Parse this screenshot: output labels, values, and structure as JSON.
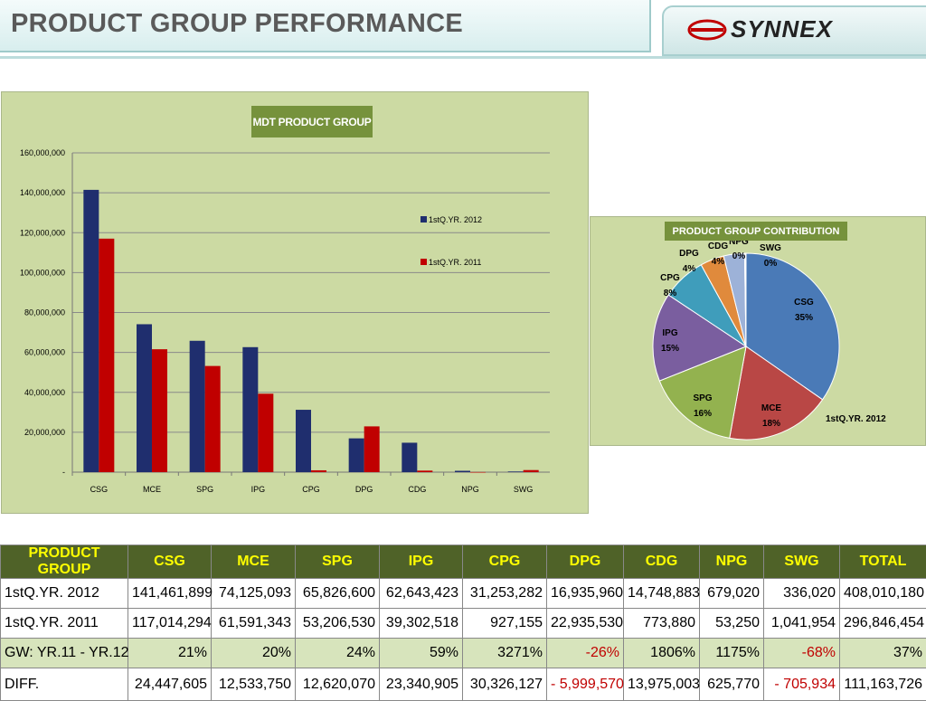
{
  "header": {
    "title": "PRODUCT GROUP PERFORMANCE",
    "logo_text": "SYNNEX"
  },
  "colors": {
    "series_2012": "#1f2e6e",
    "series_2011": "#c00000",
    "panel_bg": "#ccdaa3",
    "title_box": "#76923c"
  },
  "chart_data": [
    {
      "type": "bar",
      "title": "MDT PRODUCT GROUP",
      "categories": [
        "CSG",
        "MCE",
        "SPG",
        "IPG",
        "CPG",
        "DPG",
        "CDG",
        "NPG",
        "SWG"
      ],
      "series": [
        {
          "name": "1stQ.YR. 2012",
          "values": [
            141461899,
            74125093,
            65826600,
            62643423,
            31253282,
            16935960,
            14748883,
            679020,
            336020
          ]
        },
        {
          "name": "1stQ.YR. 2011",
          "values": [
            117014294,
            61591343,
            53206530,
            39302518,
            927155,
            22935530,
            773880,
            53250,
            1041954
          ]
        }
      ],
      "ylim": [
        0,
        160000000
      ],
      "yticks": [
        "-",
        "20,000,000",
        "40,000,000",
        "60,000,000",
        "80,000,000",
        "100,000,000",
        "120,000,000",
        "140,000,000",
        "160,000,000"
      ],
      "grid": true,
      "legend": "right"
    },
    {
      "type": "pie",
      "title": "PRODUCT GROUP CONTRIBUTION",
      "series_label": "1stQ.YR. 2012",
      "slices": [
        {
          "name": "CSG",
          "pct": "35%",
          "value": 141461899,
          "color": "#4a7ab7"
        },
        {
          "name": "MCE",
          "pct": "18%",
          "value": 74125093,
          "color": "#b94745"
        },
        {
          "name": "SPG",
          "pct": "16%",
          "value": 65826600,
          "color": "#93b24f"
        },
        {
          "name": "IPG",
          "pct": "15%",
          "value": 62643423,
          "color": "#7a5e9f"
        },
        {
          "name": "CPG",
          "pct": "8%",
          "value": 31253282,
          "color": "#3f9dbb"
        },
        {
          "name": "DPG",
          "pct": "4%",
          "value": 16935960,
          "color": "#e08a3c"
        },
        {
          "name": "CDG",
          "pct": "4%",
          "value": 14748883,
          "color": "#9db2d8"
        },
        {
          "name": "NPG",
          "pct": "0%",
          "value": 679020,
          "color": "#d9a0a0"
        },
        {
          "name": "SWG",
          "pct": "0%",
          "value": 336020,
          "color": "#c3d69b"
        }
      ]
    }
  ],
  "table": {
    "headers": [
      "PRODUCT GROUP",
      "CSG",
      "MCE",
      "SPG",
      "IPG",
      "CPG",
      "DPG",
      "CDG",
      "NPG",
      "SWG",
      "TOTAL"
    ],
    "rows": [
      {
        "label": "1stQ.YR. 2012",
        "cells": [
          "141,461,899",
          "74,125,093",
          "65,826,600",
          "62,643,423",
          "31,253,282",
          "16,935,960",
          "14,748,883",
          "679,020",
          "336,020",
          "408,010,180"
        ]
      },
      {
        "label": "1stQ.YR. 2011",
        "cells": [
          "117,014,294",
          "61,591,343",
          "53,206,530",
          "39,302,518",
          "927,155",
          "22,935,530",
          "773,880",
          "53,250",
          "1,041,954",
          "296,846,454"
        ]
      },
      {
        "label": "GW: YR.11 - YR.12",
        "cells": [
          "21%",
          "20%",
          "24%",
          "59%",
          "3271%",
          "-26%",
          "1806%",
          "1175%",
          "-68%",
          "37%"
        ]
      },
      {
        "label": "DIFF.",
        "cells": [
          "24,447,605",
          "12,533,750",
          "12,620,070",
          "23,340,905",
          "30,326,127",
          "-   5,999,570",
          "13,975,003",
          "625,770",
          "-   705,934",
          "111,163,726"
        ]
      }
    ]
  }
}
